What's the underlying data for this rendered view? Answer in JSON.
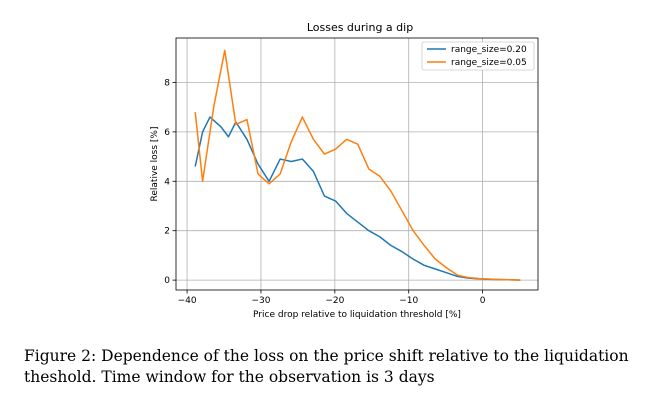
{
  "chart_data": {
    "type": "line",
    "title": "Losses during a dip",
    "xlabel": "Price drop relative to liquidation threshold [%]",
    "ylabel": "Relative loss [%]",
    "xlim": [
      -41.5,
      7.5
    ],
    "ylim": [
      -0.4,
      9.8
    ],
    "xticks": [
      -40,
      -30,
      -20,
      -10,
      0
    ],
    "xtick_labels": [
      "−40",
      "−30",
      "−20",
      "−10",
      "0"
    ],
    "yticks": [
      0,
      2,
      4,
      6,
      8
    ],
    "ytick_labels": [
      "0",
      "2",
      "4",
      "6",
      "8"
    ],
    "grid": true,
    "legend_position": "top-right",
    "series": [
      {
        "name": "range_size=0.20",
        "color": "#1f77b4",
        "x": [
          -38.9,
          -37.9,
          -36.9,
          -35.4,
          -34.4,
          -33.4,
          -31.9,
          -30.4,
          -28.9,
          -27.4,
          -25.9,
          -24.4,
          -22.9,
          -21.4,
          -19.9,
          -18.4,
          -16.9,
          -15.4,
          -13.9,
          -12.4,
          -10.9,
          -9.4,
          -7.9,
          -6.4,
          -4.9,
          -3.4,
          -1.9,
          -0.4,
          1.1,
          2.6,
          4.1,
          5.1
        ],
        "y": [
          4.6,
          6.0,
          6.6,
          6.2,
          5.8,
          6.4,
          5.7,
          4.7,
          4.0,
          4.9,
          4.8,
          4.9,
          4.4,
          3.4,
          3.2,
          2.7,
          2.35,
          2.0,
          1.75,
          1.4,
          1.15,
          0.85,
          0.6,
          0.45,
          0.3,
          0.15,
          0.08,
          0.05,
          0.03,
          0.02,
          0.01,
          0.0
        ]
      },
      {
        "name": "range_size=0.05",
        "color": "#ff7f0e",
        "x": [
          -38.9,
          -37.9,
          -36.4,
          -34.9,
          -33.4,
          -31.9,
          -30.4,
          -28.9,
          -27.4,
          -25.9,
          -24.4,
          -22.9,
          -21.4,
          -19.9,
          -18.4,
          -16.9,
          -15.4,
          -13.9,
          -12.4,
          -10.9,
          -9.4,
          -7.9,
          -6.4,
          -4.9,
          -3.4,
          -1.9,
          -0.4,
          1.1,
          2.6,
          4.1,
          5.1
        ],
        "y": [
          6.8,
          4.0,
          7.0,
          9.3,
          6.3,
          6.5,
          4.3,
          3.9,
          4.3,
          5.6,
          6.6,
          5.7,
          5.1,
          5.3,
          5.7,
          5.5,
          4.5,
          4.2,
          3.6,
          2.8,
          2.0,
          1.4,
          0.85,
          0.5,
          0.2,
          0.1,
          0.06,
          0.04,
          0.02,
          0.01,
          0.0
        ]
      }
    ]
  },
  "caption": "Figure 2: Dependence of the loss on the price shift relative to the liquidation theshold. Time window for the observation is 3 days"
}
